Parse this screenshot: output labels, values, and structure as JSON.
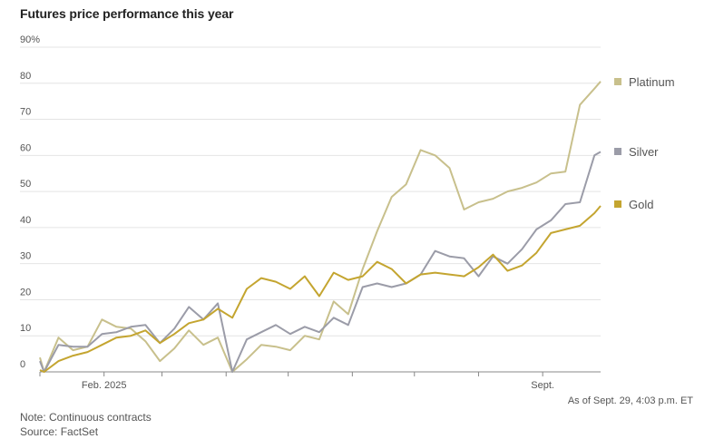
{
  "header": {
    "title": "Futures price performance this year"
  },
  "footer": {
    "as_of": "As of Sept. 29, 4:03 p.m. ET",
    "note": "Note: Continuous contracts",
    "source": "Source: FactSet"
  },
  "chart_data": {
    "type": "line",
    "title": "Futures price performance this year",
    "ylim": [
      0,
      90
    ],
    "yticks": [
      0,
      10,
      20,
      30,
      40,
      50,
      60,
      70,
      80,
      90
    ],
    "ytick_labels": [
      "0",
      "10",
      "20",
      "30",
      "40",
      "50",
      "60",
      "70",
      "80",
      "90%"
    ],
    "xticks": [
      {
        "date": "2025-01-01",
        "label": ""
      },
      {
        "date": "2025-02-01",
        "label": "Feb. 2025"
      },
      {
        "date": "2025-03-01",
        "label": ""
      },
      {
        "date": "2025-04-01",
        "label": ""
      },
      {
        "date": "2025-05-01",
        "label": ""
      },
      {
        "date": "2025-06-01",
        "label": ""
      },
      {
        "date": "2025-07-01",
        "label": ""
      },
      {
        "date": "2025-08-01",
        "label": ""
      },
      {
        "date": "2025-09-01",
        "label": "Sept."
      }
    ],
    "x": [
      "2025-01-01",
      "2025-01-03",
      "2025-01-10",
      "2025-01-17",
      "2025-01-24",
      "2025-01-31",
      "2025-02-07",
      "2025-02-14",
      "2025-02-21",
      "2025-02-28",
      "2025-03-07",
      "2025-03-14",
      "2025-03-21",
      "2025-03-28",
      "2025-04-04",
      "2025-04-11",
      "2025-04-18",
      "2025-04-25",
      "2025-05-02",
      "2025-05-09",
      "2025-05-16",
      "2025-05-23",
      "2025-05-30",
      "2025-06-06",
      "2025-06-13",
      "2025-06-20",
      "2025-06-27",
      "2025-07-04",
      "2025-07-11",
      "2025-07-18",
      "2025-07-25",
      "2025-08-01",
      "2025-08-08",
      "2025-08-15",
      "2025-08-22",
      "2025-08-29",
      "2025-09-05",
      "2025-09-12",
      "2025-09-19",
      "2025-09-26",
      "2025-09-29"
    ],
    "series": [
      {
        "name": "Platinum",
        "color": "#c8c08c",
        "values": [
          4,
          0,
          9.5,
          6,
          7,
          14.5,
          12.5,
          12,
          8.5,
          3,
          6.5,
          11.5,
          7.5,
          9.5,
          0,
          3.5,
          7.5,
          7,
          6,
          10,
          9,
          19.5,
          16,
          28.5,
          39,
          48.5,
          52,
          61.5,
          60,
          56.5,
          45,
          47,
          48,
          50,
          51,
          52.5,
          55,
          55.5,
          74,
          78.5,
          80.5
        ]
      },
      {
        "name": "Silver",
        "color": "#9b9ca8",
        "values": [
          3,
          0,
          7.5,
          7,
          7,
          10.5,
          11,
          12.5,
          13,
          8,
          12,
          18,
          14.5,
          19,
          0,
          9,
          11,
          13,
          10.5,
          12.5,
          11,
          15,
          13,
          23.5,
          24.5,
          23.5,
          24.5,
          27,
          33.5,
          32,
          31.5,
          26.5,
          32,
          30,
          34,
          39.5,
          42,
          46.5,
          47,
          60,
          61
        ]
      },
      {
        "name": "Gold",
        "color": "#c4a530",
        "values": [
          0.5,
          0,
          3,
          4.5,
          5.5,
          7.5,
          9.5,
          10,
          11.5,
          8,
          10.5,
          13.5,
          14.5,
          17.5,
          15,
          23,
          26,
          25,
          23,
          26.5,
          21,
          27.5,
          25.5,
          26.5,
          30.5,
          28.5,
          24.5,
          27,
          27.5,
          27,
          26.5,
          29,
          32.5,
          28,
          29.5,
          33,
          38.5,
          39.5,
          40.5,
          44,
          46
        ]
      }
    ],
    "legend": {
      "placement": "right"
    },
    "grid": true
  }
}
